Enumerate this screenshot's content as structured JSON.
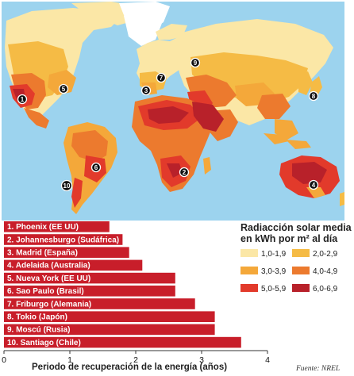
{
  "map": {
    "ocean_color": "#9cd3ee",
    "land_color": "#f4d387",
    "markers": [
      {
        "label": "1",
        "name": "Phoenix"
      },
      {
        "label": "2",
        "name": "Johannesburgo"
      },
      {
        "label": "3",
        "name": "Madrid"
      },
      {
        "label": "4",
        "name": "Adelaida"
      },
      {
        "label": "5",
        "name": "Nueva York"
      },
      {
        "label": "6",
        "name": "Sao Paulo"
      },
      {
        "label": "7",
        "name": "Friburgo"
      },
      {
        "label": "8",
        "name": "Tokio"
      },
      {
        "label": "9",
        "name": "Moscú"
      },
      {
        "label": "10",
        "name": "Santiago"
      }
    ]
  },
  "legend": {
    "title_line1": "Radiacción solar media",
    "title_line2": "en kWh por m² al día",
    "items": [
      {
        "label": "1,0-1,9",
        "color": "#fbe7a6"
      },
      {
        "label": "2,0-2,9",
        "color": "#f5bb45"
      },
      {
        "label": "3,0-3,9",
        "color": "#f4a83a"
      },
      {
        "label": "4,0-4,9",
        "color": "#ec7a2e"
      },
      {
        "label": "5,0-5,9",
        "color": "#e23a2b"
      },
      {
        "label": "6,0-6,9",
        "color": "#b8212a"
      }
    ]
  },
  "chart_data": {
    "type": "bar",
    "orientation": "horizontal",
    "categories": [
      "1. Phoenix (EE UU)",
      "2. Johannesburgo (Sudáfrica)",
      "3. Madrid (España)",
      "4. Adelaida (Australia)",
      "5. Nueva York (EE UU)",
      "6. Sao Paulo (Brasil)",
      "7. Friburgo (Alemania)",
      "8. Tokio (Japón)",
      "9. Moscú (Rusia)",
      "10. Santiago (Chile)"
    ],
    "values": [
      1.6,
      1.8,
      1.9,
      2.1,
      2.6,
      2.6,
      2.9,
      3.2,
      3.2,
      3.6
    ],
    "bar_color": "#c81e2a",
    "xlabel": "Periodo de recuperación de la energía (años)",
    "xlim": [
      0,
      4
    ],
    "xticks": [
      "0",
      "1",
      "2",
      "3",
      "4"
    ],
    "grid": false
  },
  "source": "Fuente: NREL"
}
